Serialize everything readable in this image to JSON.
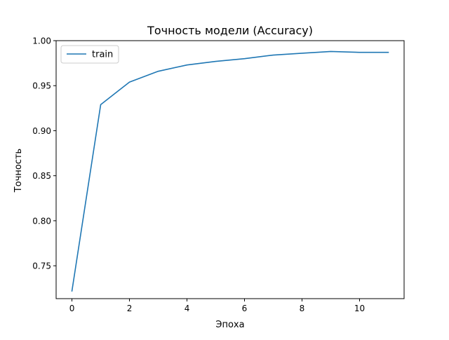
{
  "chart_data": {
    "type": "line",
    "title": "Точность модели (Accuracy)",
    "xlabel": "Эпоха",
    "ylabel": "Точность",
    "x": [
      0,
      1,
      2,
      3,
      4,
      5,
      6,
      7,
      8,
      9,
      10,
      11
    ],
    "series": [
      {
        "name": "train",
        "color": "#1f77b4",
        "values": [
          0.722,
          0.929,
          0.954,
          0.966,
          0.973,
          0.977,
          0.98,
          0.984,
          0.986,
          0.988,
          0.987,
          0.987
        ]
      }
    ],
    "xlim": [
      -0.55,
      11.55
    ],
    "ylim": [
      0.7135,
      1.0
    ],
    "xticks": [
      0,
      2,
      4,
      6,
      8,
      10
    ],
    "xtick_labels": [
      "0",
      "2",
      "4",
      "6",
      "8",
      "10"
    ],
    "yticks": [
      0.75,
      0.8,
      0.85,
      0.9,
      0.95,
      1.0
    ],
    "ytick_labels": [
      "0.75",
      "0.80",
      "0.85",
      "0.90",
      "0.95",
      "1.00"
    ],
    "grid": false,
    "legend_position": "top-left"
  }
}
